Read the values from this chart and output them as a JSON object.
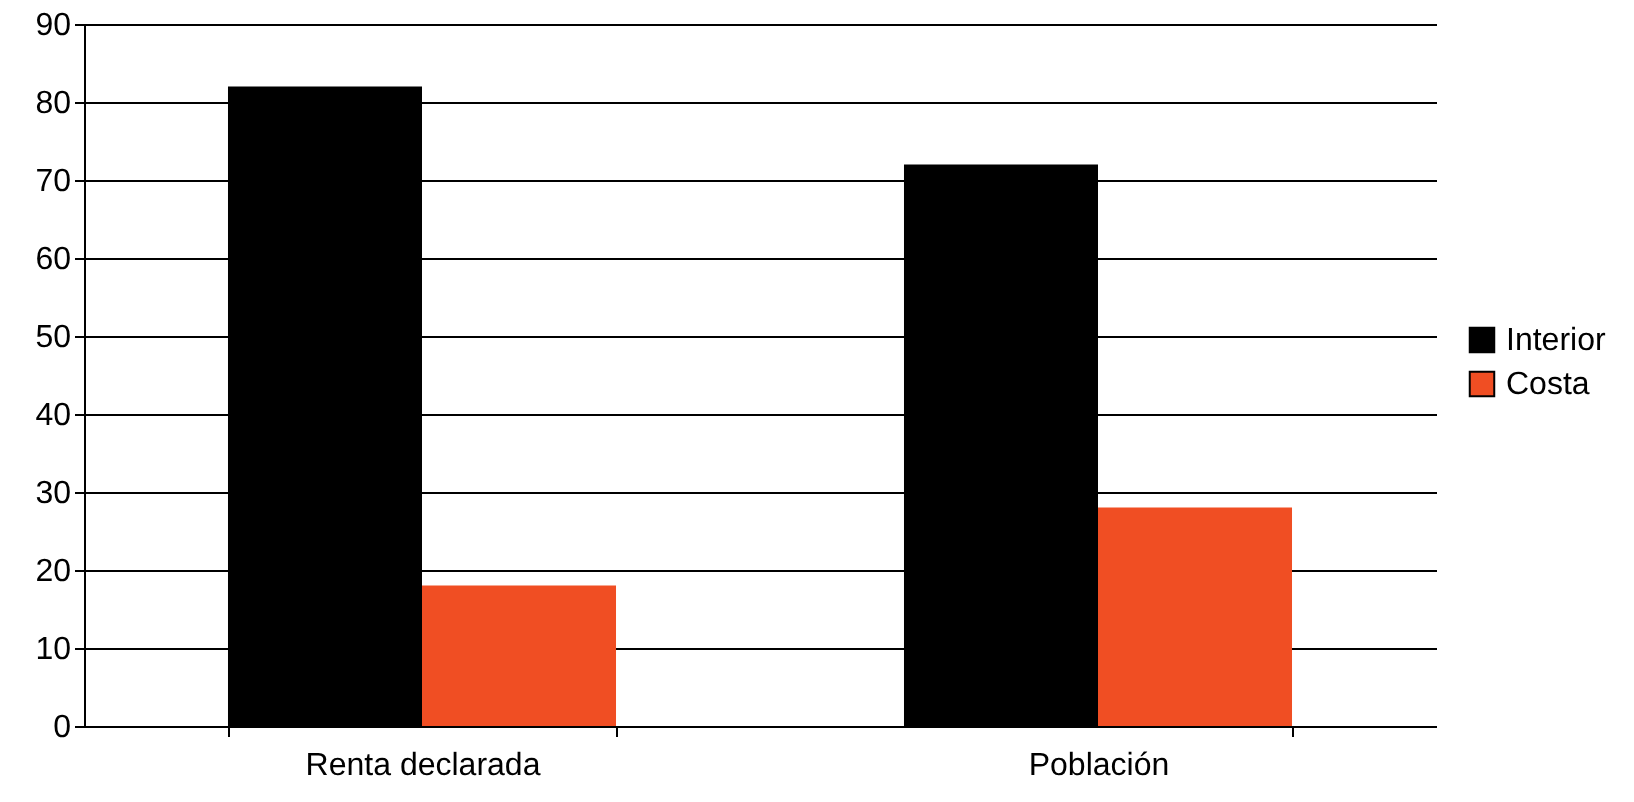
{
  "chart_data": {
    "type": "bar",
    "categories": [
      "Renta declarada",
      "Población"
    ],
    "series": [
      {
        "name": "Interior",
        "color": "#000000",
        "values": [
          82,
          72
        ]
      },
      {
        "name": "Costa",
        "color": "#f04e23",
        "values": [
          18,
          28
        ]
      }
    ],
    "ylim": [
      0,
      90
    ],
    "yticks": [
      0,
      10,
      20,
      30,
      40,
      50,
      60,
      70,
      80,
      90
    ],
    "grid": "y",
    "legend": "right"
  }
}
